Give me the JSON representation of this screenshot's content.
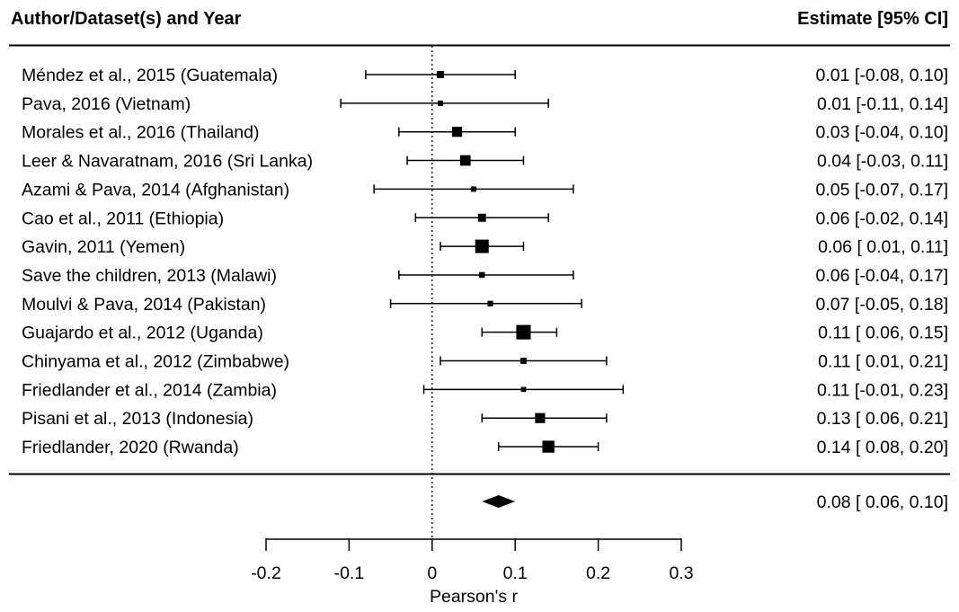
{
  "chart_data": {
    "type": "forest",
    "header_left": "Author/Dataset(s) and Year",
    "header_right": "Estimate [95% CI]",
    "xlabel": "Pearson's r",
    "xlim": [
      -0.2,
      0.3
    ],
    "xticks": [
      "-0.2",
      "-0.1",
      "0",
      "0.1",
      "0.2",
      "0.3"
    ],
    "reference_line": 0,
    "studies": [
      {
        "label": "Méndez et al., 2015 (Guatemala)",
        "estimate": 0.01,
        "lower": -0.08,
        "upper": 0.1,
        "weight": 0.35,
        "text": "0.01 [-0.08, 0.10]"
      },
      {
        "label": "Pava, 2016 (Vietnam)",
        "estimate": 0.01,
        "lower": -0.11,
        "upper": 0.14,
        "weight": 0.18,
        "text": "0.01 [-0.11, 0.14]"
      },
      {
        "label": "Morales et al., 2016 (Thailand)",
        "estimate": 0.03,
        "lower": -0.04,
        "upper": 0.1,
        "weight": 0.65,
        "text": "0.03 [-0.04, 0.10]"
      },
      {
        "label": "Leer & Navaratnam, 2016 (Sri Lanka)",
        "estimate": 0.04,
        "lower": -0.03,
        "upper": 0.11,
        "weight": 0.7,
        "text": "0.04 [-0.03, 0.11]"
      },
      {
        "label": "Azami & Pava, 2014 (Afghanistan)",
        "estimate": 0.05,
        "lower": -0.07,
        "upper": 0.17,
        "weight": 0.18,
        "text": "0.05 [-0.07, 0.17]"
      },
      {
        "label": "Cao et al., 2011 (Ethiopia)",
        "estimate": 0.06,
        "lower": -0.02,
        "upper": 0.14,
        "weight": 0.45,
        "text": "0.06 [-0.02, 0.14]"
      },
      {
        "label": "Gavin, 2011 (Yemen)",
        "estimate": 0.06,
        "lower": 0.01,
        "upper": 0.11,
        "weight": 1.0,
        "text": "0.06 [ 0.01, 0.11]"
      },
      {
        "label": "Save the children, 2013 (Malawi)",
        "estimate": 0.06,
        "lower": -0.04,
        "upper": 0.17,
        "weight": 0.22,
        "text": "0.06 [-0.04, 0.17]"
      },
      {
        "label": "Moulvi & Pava, 2014 (Pakistan)",
        "estimate": 0.07,
        "lower": -0.05,
        "upper": 0.18,
        "weight": 0.2,
        "text": "0.07 [-0.05, 0.18]"
      },
      {
        "label": "Guajardo et al., 2012 (Uganda)",
        "estimate": 0.11,
        "lower": 0.06,
        "upper": 0.15,
        "weight": 1.1,
        "text": "0.11 [ 0.06, 0.15]"
      },
      {
        "label": "Chinyama et al., 2012 (Zimbabwe)",
        "estimate": 0.11,
        "lower": 0.01,
        "upper": 0.21,
        "weight": 0.25,
        "text": "0.11 [ 0.01, 0.21]"
      },
      {
        "label": "Friedlander et al., 2014 (Zambia)",
        "estimate": 0.11,
        "lower": -0.01,
        "upper": 0.23,
        "weight": 0.15,
        "text": "0.11 [-0.01, 0.23]"
      },
      {
        "label": "Pisani et al., 2013 (Indonesia)",
        "estimate": 0.13,
        "lower": 0.06,
        "upper": 0.21,
        "weight": 0.65,
        "text": "0.13 [ 0.06, 0.21]"
      },
      {
        "label": "Friedlander, 2020 (Rwanda)",
        "estimate": 0.14,
        "lower": 0.08,
        "upper": 0.2,
        "weight": 0.85,
        "text": "0.14 [ 0.08, 0.20]"
      }
    ],
    "summary": {
      "estimate": 0.08,
      "lower": 0.06,
      "upper": 0.1,
      "text": "0.08 [ 0.06, 0.10]"
    }
  }
}
